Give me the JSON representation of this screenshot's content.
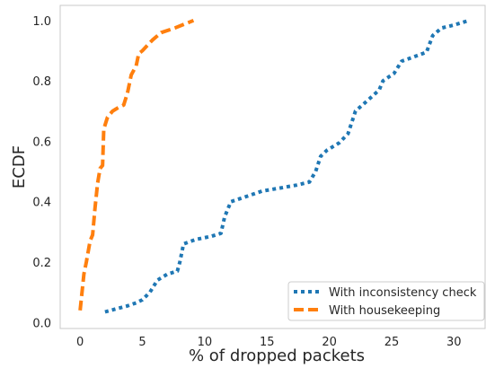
{
  "chart_data": {
    "type": "line",
    "title": "",
    "xlabel": "% of dropped packets",
    "ylabel": "ECDF",
    "xlim": [
      -1.6,
      32.5
    ],
    "ylim": [
      -0.02,
      1.05
    ],
    "xticks": [
      0,
      5,
      10,
      15,
      20,
      25,
      30
    ],
    "yticks": [
      0.0,
      0.2,
      0.4,
      0.6,
      0.8,
      1.0
    ],
    "grid": false,
    "legend_position": "lower-right",
    "series": [
      {
        "name": "With inconsistency check",
        "color": "#1f77b4",
        "style": "dotted",
        "x": [
          2.0,
          2.9,
          3.8,
          4.5,
          5.0,
          5.6,
          6.2,
          7.0,
          7.8,
          8.0,
          8.3,
          9.3,
          10.5,
          11.3,
          11.6,
          12.1,
          13.2,
          14.6,
          16.0,
          17.4,
          18.4,
          18.9,
          19.3,
          19.8,
          20.8,
          21.5,
          22.1,
          23.2,
          24.0,
          24.3,
          25.2,
          25.8,
          26.8,
          27.8,
          28.3,
          29.0,
          30.0,
          31.2
        ],
        "y": [
          0.035,
          0.045,
          0.055,
          0.065,
          0.075,
          0.1,
          0.14,
          0.16,
          0.17,
          0.2,
          0.26,
          0.275,
          0.285,
          0.295,
          0.35,
          0.4,
          0.415,
          0.435,
          0.445,
          0.455,
          0.465,
          0.5,
          0.55,
          0.57,
          0.595,
          0.625,
          0.7,
          0.74,
          0.77,
          0.8,
          0.825,
          0.865,
          0.88,
          0.895,
          0.95,
          0.975,
          0.985,
          1.0
        ]
      },
      {
        "name": "With housekeeping",
        "color": "#ff7f0e",
        "style": "dashed",
        "x": [
          0.0,
          0.3,
          0.5,
          0.8,
          1.0,
          1.2,
          1.4,
          1.6,
          1.8,
          1.9,
          2.2,
          2.6,
          3.0,
          3.5,
          3.8,
          4.1,
          4.5,
          4.7,
          5.0,
          5.8,
          6.5,
          7.6,
          8.5,
          9.1
        ],
        "y": [
          0.04,
          0.16,
          0.2,
          0.27,
          0.29,
          0.38,
          0.46,
          0.51,
          0.52,
          0.64,
          0.68,
          0.7,
          0.71,
          0.72,
          0.76,
          0.82,
          0.85,
          0.89,
          0.9,
          0.935,
          0.96,
          0.975,
          0.99,
          1.0
        ]
      }
    ]
  }
}
